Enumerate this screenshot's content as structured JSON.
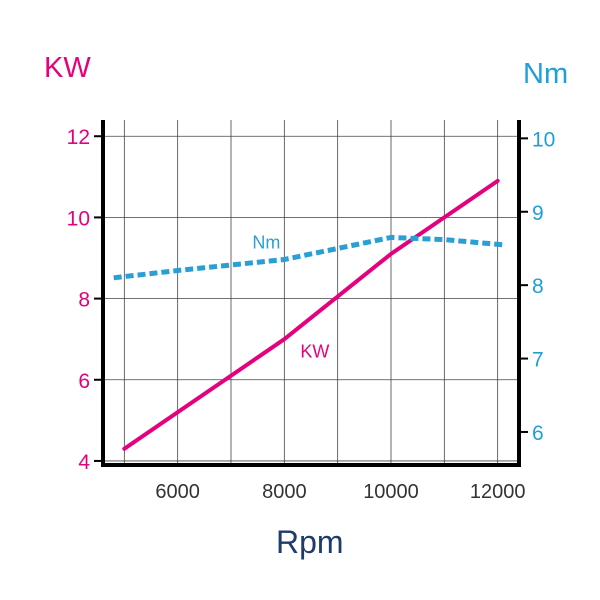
{
  "chart_data": {
    "type": "line",
    "title": "",
    "xlabel": "Rpm",
    "ylabel_left": "KW",
    "ylabel_right": "Nm",
    "xlim": [
      4600,
      12400
    ],
    "ylim_left": [
      3.9,
      12.4
    ],
    "ylim_right": [
      5.55,
      10.25
    ],
    "x_ticks": [
      6000,
      8000,
      10000,
      12000
    ],
    "y_left_ticks": [
      4,
      6,
      8,
      10,
      12
    ],
    "y_right_ticks": [
      6,
      7,
      8,
      9,
      10
    ],
    "grid": true,
    "series": [
      {
        "name": "KW",
        "axis": "left",
        "x": [
          5000,
          8000,
          10000,
          12000
        ],
        "values": [
          4.3,
          7.0,
          9.1,
          10.9
        ]
      },
      {
        "name": "Nm",
        "axis": "right",
        "x": [
          4800,
          6000,
          8000,
          10000,
          11000,
          12100
        ],
        "values": [
          8.1,
          8.2,
          8.35,
          8.65,
          8.62,
          8.55
        ]
      }
    ],
    "colors": {
      "kw": "#e5007e",
      "nm": "#2a9fd6",
      "x_tick": "#333333",
      "right_tick": "#1e9fd9"
    }
  }
}
